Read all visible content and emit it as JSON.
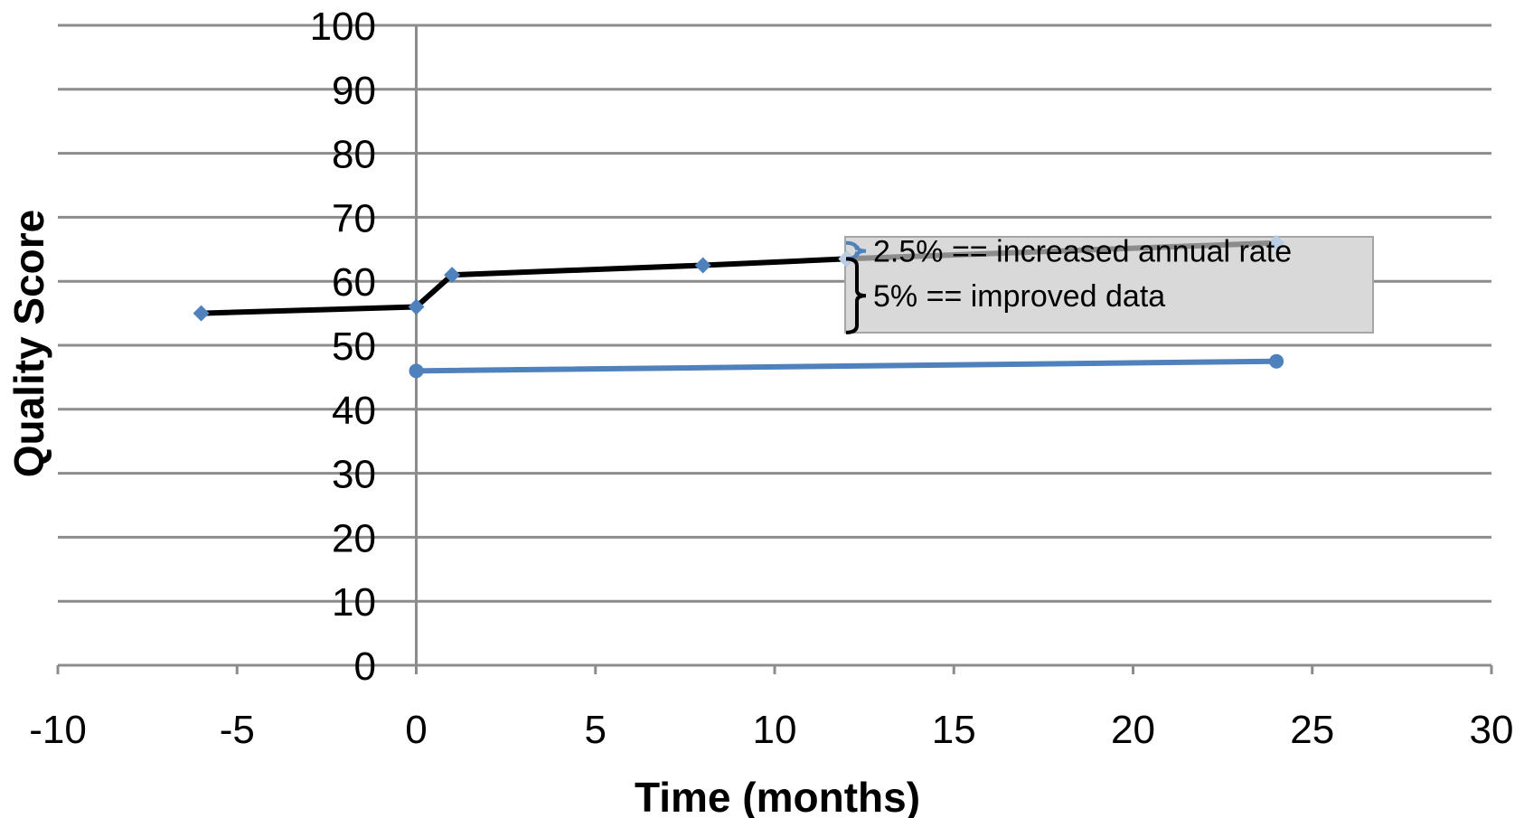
{
  "chart_data": {
    "type": "line",
    "title": "",
    "xlabel": "Time (months)",
    "ylabel": "Quality Score",
    "xlim": [
      -10,
      30
    ],
    "ylim": [
      0,
      100
    ],
    "xticks": [
      -10,
      -5,
      0,
      5,
      10,
      15,
      20,
      25,
      30
    ],
    "yticks": [
      0,
      10,
      20,
      30,
      40,
      50,
      60,
      70,
      80,
      90,
      100
    ],
    "grid": "horizontal",
    "series": [
      {
        "color": "#000000",
        "marker": "diamond",
        "marker_color": "#4f81bd",
        "x": [
          -6,
          0,
          1,
          8,
          12
        ],
        "y": [
          55,
          56,
          61,
          62.5,
          63.5
        ]
      },
      {
        "color": "#8c8c8c",
        "marker": "diamond",
        "marker_color": "#b9cde5",
        "x": [
          12,
          24
        ],
        "y": [
          63.5,
          66
        ]
      },
      {
        "color": "#4f81bd",
        "marker": "circle",
        "marker_color": "#4f81bd",
        "x": [
          0,
          24
        ],
        "y": [
          46,
          47.5
        ]
      }
    ],
    "annotations": [
      {
        "text": "2.5% == increased annual rate",
        "bracket_color": "#4f81bd",
        "y_range": [
          63.5,
          66
        ]
      },
      {
        "text": "5% == improved data",
        "bracket_color": "#000000",
        "y_range": [
          52,
          63.5
        ]
      }
    ],
    "annotation_box_color": "#d9d9d9"
  }
}
